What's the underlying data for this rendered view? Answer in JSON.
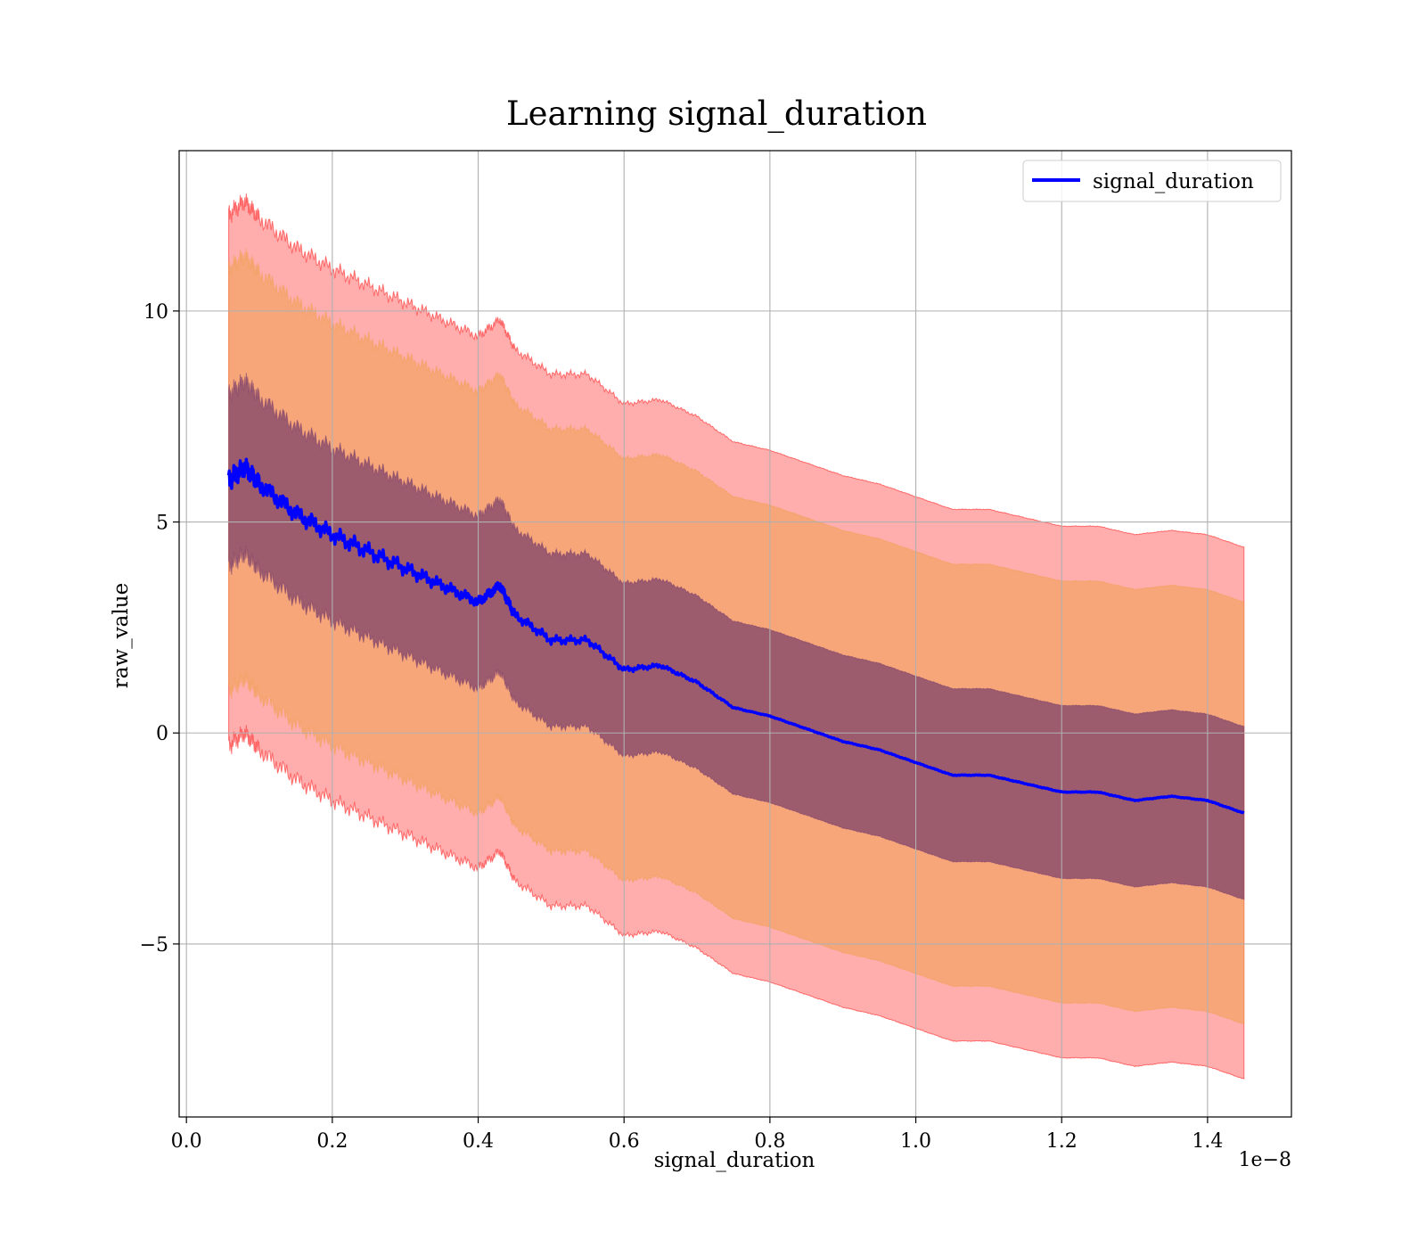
{
  "chart_data": {
    "type": "area",
    "title": "Learning signal_duration",
    "xlabel": "signal_duration",
    "ylabel": "raw_value",
    "x_offset_label": "1e−8",
    "x_scale_factor": 1e-08,
    "xlim": [
      -0.01,
      1.515
    ],
    "ylim": [
      -9.1,
      13.8
    ],
    "x_ticks": [
      0.0,
      0.2,
      0.4,
      0.6,
      0.8,
      1.0,
      1.2,
      1.4
    ],
    "x_tick_labels": [
      "0.0",
      "0.2",
      "0.4",
      "0.6",
      "0.8",
      "1.0",
      "1.2",
      "1.4"
    ],
    "y_ticks": [
      -5,
      0,
      5,
      10
    ],
    "y_tick_labels": [
      "−5",
      "0",
      "5",
      "10"
    ],
    "grid": true,
    "legend": {
      "position": "top-right",
      "entries": [
        "signal_duration"
      ]
    },
    "colors": {
      "mean_line": "#0000ff",
      "band_outer": "#ff0000",
      "band_middle": "#f0a050",
      "band_inner": "#7a3e6a",
      "grid": "#b0b0b0"
    },
    "x": [
      0.058,
      0.08,
      0.1,
      0.15,
      0.2,
      0.25,
      0.3,
      0.35,
      0.4,
      0.43,
      0.45,
      0.5,
      0.55,
      0.6,
      0.65,
      0.7,
      0.75,
      0.8,
      0.85,
      0.9,
      0.95,
      1.0,
      1.05,
      1.1,
      1.15,
      1.2,
      1.25,
      1.3,
      1.35,
      1.4,
      1.45
    ],
    "series": [
      {
        "name": "signal_duration",
        "values": [
          6.0,
          6.3,
          5.9,
          5.2,
          4.7,
          4.3,
          3.9,
          3.5,
          3.1,
          3.5,
          2.8,
          2.2,
          2.2,
          1.5,
          1.6,
          1.2,
          0.6,
          0.4,
          0.1,
          -0.2,
          -0.4,
          -0.7,
          -1.0,
          -1.0,
          -1.2,
          -1.4,
          -1.4,
          -1.6,
          -1.5,
          -1.6,
          -1.9
        ]
      }
    ],
    "bands": [
      {
        "level": "outer",
        "offset": 6.3
      },
      {
        "level": "middle",
        "offset": 5.0
      },
      {
        "level": "inner",
        "offset": 2.05
      }
    ]
  }
}
